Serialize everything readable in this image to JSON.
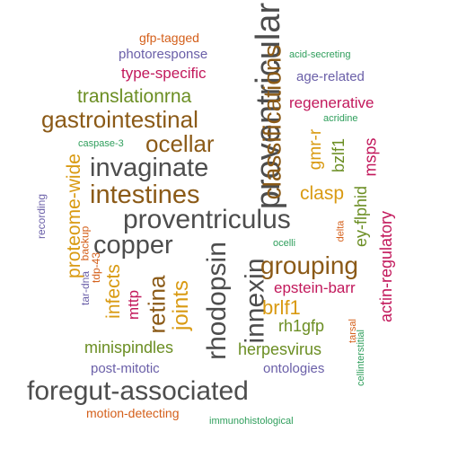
{
  "palette": {
    "dark_gray": "#4d4d4d",
    "brown": "#8b5a17",
    "olive": "#6b8e23",
    "gold": "#d99a12",
    "magenta": "#c2185b",
    "purple": "#6a5fa8",
    "green": "#2e9e5b",
    "orange": "#d45f1a",
    "tan": "#b47a32"
  },
  "words": [
    {
      "text": "proventricular"
    },
    {
      "text": "proventriculus"
    },
    {
      "text": "foregut-associated"
    },
    {
      "text": "rhodopsin"
    },
    {
      "text": "innexin"
    },
    {
      "text": "invaginate"
    },
    {
      "text": "gastrointestinal"
    },
    {
      "text": "intestines"
    },
    {
      "text": "copper"
    },
    {
      "text": "classifications"
    },
    {
      "text": "grouping"
    },
    {
      "text": "ocellar"
    },
    {
      "text": "retina"
    },
    {
      "text": "joints"
    },
    {
      "text": "translationrna"
    },
    {
      "text": "clasp"
    },
    {
      "text": "brlf1"
    },
    {
      "text": "proteome-wide"
    },
    {
      "text": "infects"
    },
    {
      "text": "gmr-r"
    },
    {
      "text": "type-specific"
    },
    {
      "text": "regenerative"
    },
    {
      "text": "herpesvirus"
    },
    {
      "text": "minispindles"
    },
    {
      "text": "bzlf1"
    },
    {
      "text": "msps"
    },
    {
      "text": "ey-flphid"
    },
    {
      "text": "rh1gfp"
    },
    {
      "text": "actin-regulatory"
    },
    {
      "text": "epstein-barr"
    },
    {
      "text": "mttp"
    },
    {
      "text": "photoresponse"
    },
    {
      "text": "age-related"
    },
    {
      "text": "gfp-tagged"
    },
    {
      "text": "post-mitotic"
    },
    {
      "text": "ontologies"
    },
    {
      "text": "motion-detecting"
    },
    {
      "text": "recording"
    },
    {
      "text": "tar-dna"
    },
    {
      "text": "backup"
    },
    {
      "text": "tdp-43"
    },
    {
      "text": "acid-secreting"
    },
    {
      "text": "caspase-3"
    },
    {
      "text": "acridine"
    },
    {
      "text": "ocelli"
    },
    {
      "text": "delta"
    },
    {
      "text": "tarsal"
    },
    {
      "text": "cellinterstitial"
    },
    {
      "text": "immunohistological"
    }
  ]
}
